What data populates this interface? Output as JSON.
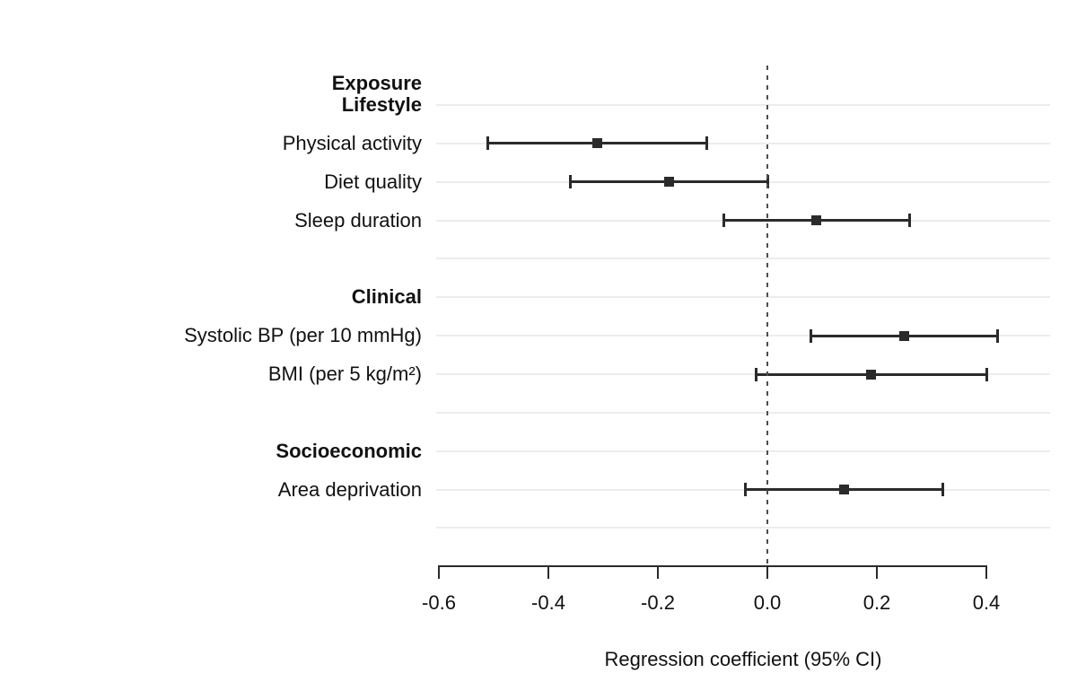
{
  "chart_data": {
    "type": "scatter",
    "variant": "forest_plot",
    "title": "",
    "xlabel": "Regression coefficient (95% CI)",
    "column_header": "Exposure",
    "xlim": [
      -0.66,
      0.52
    ],
    "x_ticks": [
      -0.6,
      -0.4,
      -0.2,
      0.0,
      0.2,
      0.4
    ],
    "x_tick_labels": [
      "-0.6",
      "-0.4",
      "-0.2",
      "0.0",
      "0.2",
      "0.4"
    ],
    "zero_reference_line": 0.0,
    "grid": "horizontal-only",
    "legend": "none",
    "rows": [
      {
        "kind": "header",
        "label": "Lifestyle"
      },
      {
        "kind": "item",
        "label": "Physical activity",
        "estimate": -0.31,
        "ci_low": -0.51,
        "ci_high": -0.11
      },
      {
        "kind": "item",
        "label": "Diet quality",
        "estimate": -0.18,
        "ci_low": -0.36,
        "ci_high": 0.0
      },
      {
        "kind": "item",
        "label": "Sleep duration",
        "estimate": 0.09,
        "ci_low": -0.08,
        "ci_high": 0.26
      },
      {
        "kind": "spacer",
        "label": ""
      },
      {
        "kind": "header",
        "label": "Clinical"
      },
      {
        "kind": "item",
        "label": "Systolic BP (per 10 mmHg)",
        "estimate": 0.25,
        "ci_low": 0.08,
        "ci_high": 0.42
      },
      {
        "kind": "item",
        "label": "BMI (per 5 kg/m²)",
        "estimate": 0.19,
        "ci_low": -0.02,
        "ci_high": 0.4
      },
      {
        "kind": "spacer",
        "label": ""
      },
      {
        "kind": "header",
        "label": "Socioeconomic"
      },
      {
        "kind": "item",
        "label": "Area deprivation",
        "estimate": 0.14,
        "ci_low": -0.04,
        "ci_high": 0.32
      },
      {
        "kind": "spacer",
        "label": ""
      }
    ]
  },
  "colors": {
    "background": "#ffffff",
    "marker": "#2b2b2b",
    "ci": "#2b2b2b",
    "axis": "#2b2b2b",
    "text": "#111111",
    "gridline": "#ececec",
    "zero_line": "#4d4d4d"
  }
}
